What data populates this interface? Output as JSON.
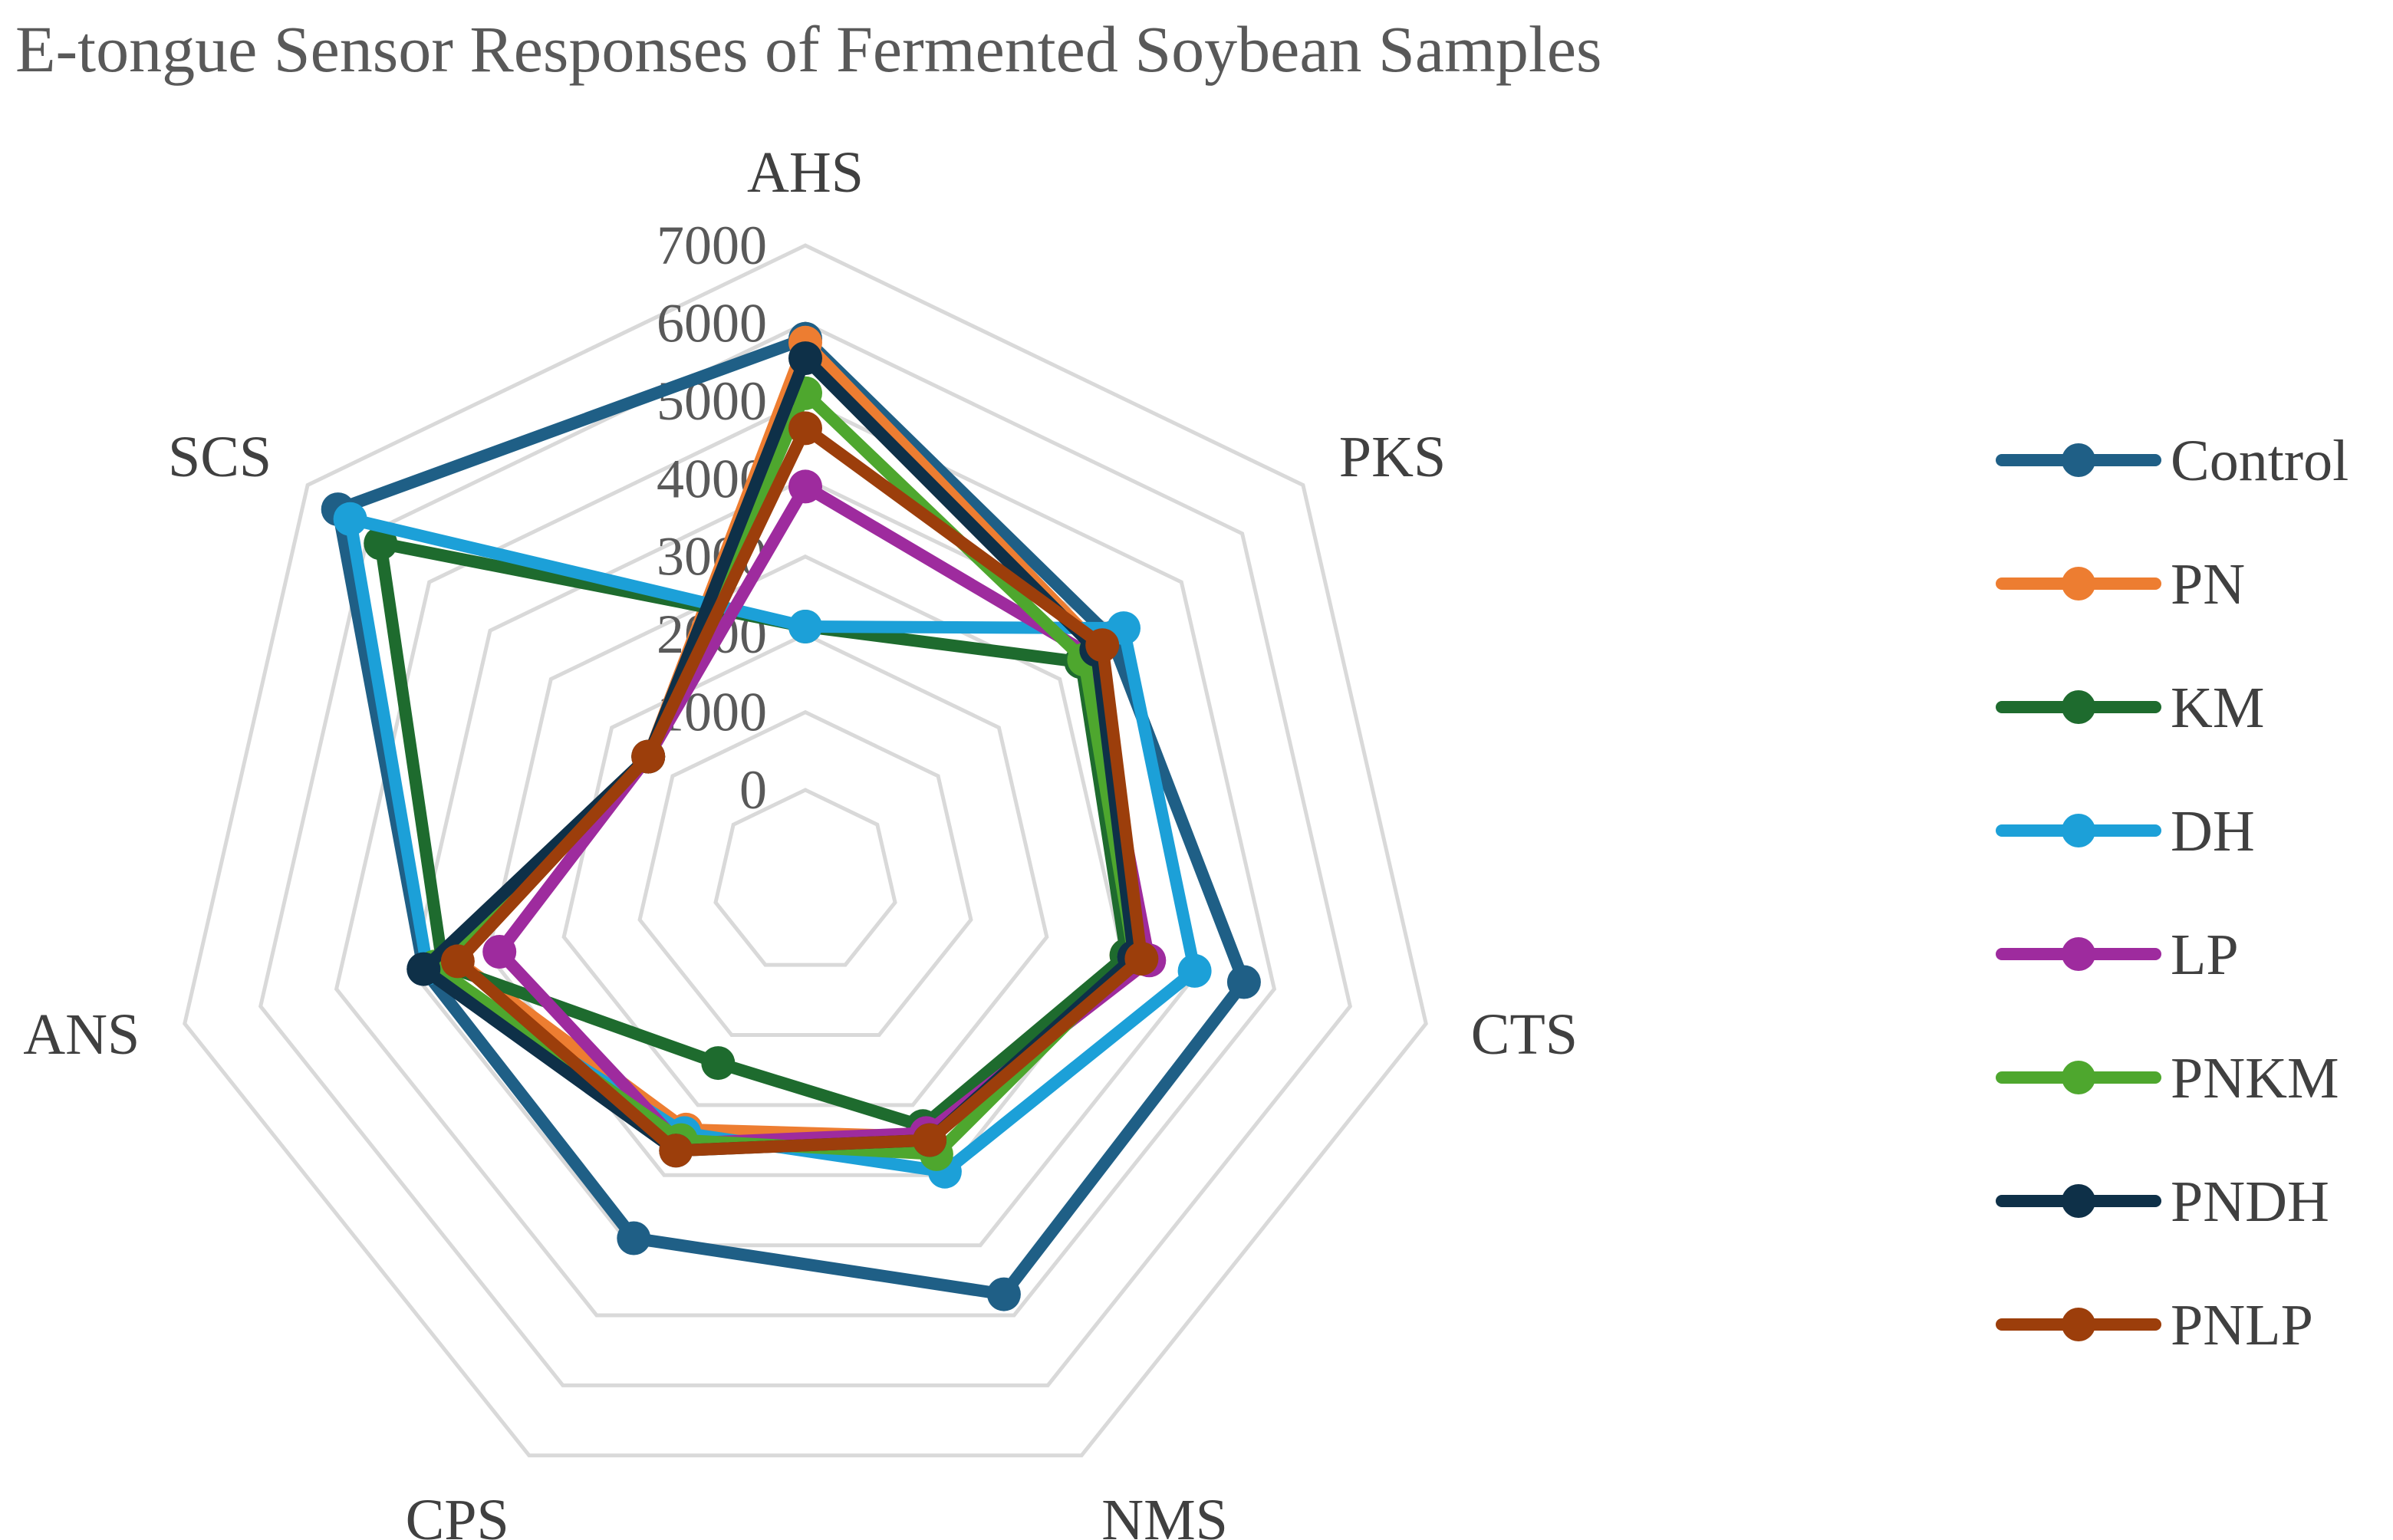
{
  "chart_data": {
    "type": "radar",
    "title": "E-tongue Sensor Responses of Fermented Soybean Samples",
    "axes": [
      "AHS",
      "PKS",
      "CTS",
      "NMS",
      "CPS",
      "ANS",
      "SCS"
    ],
    "rlim": [
      0,
      7000
    ],
    "ticks": [
      0,
      1000,
      2000,
      3000,
      4000,
      5000,
      6000,
      7000
    ],
    "tick_labels": [
      "0",
      "1000",
      "2000",
      "3000",
      "4000",
      "5000",
      "6000",
      "7000"
    ],
    "grid": true,
    "legend_position": "right",
    "series": [
      {
        "name": "Control",
        "color": "#1f5f86",
        "values": [
          5800,
          3850,
          4600,
          4700,
          3900,
          3850,
          6500
        ]
      },
      {
        "name": "PN",
        "color": "#ed7d31",
        "values": [
          5750,
          3650,
          3050,
          2450,
          2350,
          3400,
          1400
        ]
      },
      {
        "name": "KM",
        "color": "#1e6b2e",
        "values": [
          2100,
          3350,
          3050,
          2300,
          1400,
          3600,
          5800
        ]
      },
      {
        "name": "DH",
        "color": "#1ca0d8",
        "values": [
          2100,
          4050,
          3950,
          2950,
          2400,
          3800,
          6300
        ]
      },
      {
        "name": "LP",
        "color": "#9e2b9e",
        "values": [
          3900,
          3500,
          3350,
          2400,
          2550,
          2850,
          1400
        ]
      },
      {
        "name": "PNKM",
        "color": "#4ea72e",
        "values": [
          5100,
          3400,
          3150,
          2700,
          2500,
          3700,
          1400
        ]
      },
      {
        "name": "PNDH",
        "color": "#0e3048",
        "values": [
          5550,
          3600,
          3150,
          2500,
          2650,
          3850,
          1400
        ]
      },
      {
        "name": "PNLP",
        "color": "#9c3e0b",
        "values": [
          4650,
          3700,
          3250,
          2500,
          2650,
          3400,
          1400
        ]
      }
    ]
  }
}
